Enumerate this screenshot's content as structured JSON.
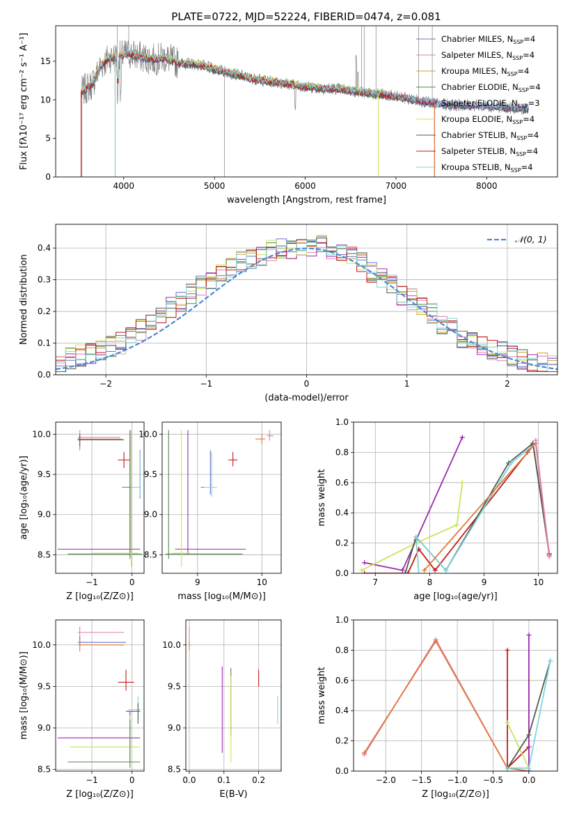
{
  "figure": {
    "title": "PLATE=0722, MJD=52224, FIBERID=0474, z=0.081"
  },
  "colors": {
    "chabrier_miles": "#6a72c8",
    "salpeter_miles": "#e07db2",
    "kroupa_miles": "#c8a030",
    "chabrier_elodie": "#4f8a45",
    "salpeter_elodie": "#9a2ab0",
    "kroupa_elodie": "#c9e45a",
    "chabrier_stelib": "#505a50",
    "salpeter_stelib": "#c41818",
    "kroupa_stelib": "#7fd4dc",
    "data": "#808080",
    "gaussian": "#4a86d6",
    "orange": "#e07a3a"
  },
  "chart_data": [
    {
      "type": "line",
      "xlabel": "wavelength [Angstrom, rest frame]",
      "ylabel": "Flux [fλ10⁻¹⁷ erg cm⁻² s⁻¹ A⁻¹]",
      "xlim": [
        3250,
        8780
      ],
      "ylim": [
        0,
        19.6
      ],
      "xticks": [
        4000,
        5000,
        6000,
        7000,
        8000
      ],
      "yticks": [
        0,
        5,
        10,
        15
      ],
      "grid": false,
      "legend_position": "top-right",
      "series": [
        {
          "name": "Chabrier MILES, N",
          "suffix": "=4"
        },
        {
          "name": "Salpeter MILES, N",
          "suffix": "=4"
        },
        {
          "name": "Kroupa MILES, N",
          "suffix": "=4"
        },
        {
          "name": "Chabrier ELODIE, N",
          "suffix": "=4"
        },
        {
          "name": "Salpeter ELODIE, N",
          "suffix": "=3"
        },
        {
          "name": "Kroupa ELODIE, N",
          "suffix": "=4"
        },
        {
          "name": "Chabrier STELIB, N",
          "suffix": "=4"
        },
        {
          "name": "Salpeter STELIB, N",
          "suffix": "=4"
        },
        {
          "name": "Kroupa STELIB, N",
          "suffix": "=4"
        }
      ],
      "continuum": {
        "x": [
          3530,
          3650,
          3750,
          3850,
          3950,
          4050,
          4150,
          4250,
          4350,
          4450,
          4600,
          4800,
          5000,
          5200,
          5400,
          5600,
          5800,
          6000,
          6200,
          6400,
          6600,
          6800,
          7000,
          7200,
          7400,
          7600,
          7800,
          8000,
          8200,
          8450
        ],
        "y": [
          11.0,
          12.0,
          14.5,
          15.5,
          15.6,
          16.0,
          15.7,
          15.4,
          15.2,
          15.5,
          14.8,
          14.6,
          14.0,
          13.4,
          12.8,
          12.4,
          12.1,
          11.7,
          11.5,
          11.4,
          11.0,
          10.8,
          10.4,
          10.0,
          9.6,
          9.3,
          9.3,
          9.2,
          9.0,
          8.8
        ]
      }
    },
    {
      "type": "line",
      "xlabel": "(data-model)/error",
      "ylabel": "Normed distribution",
      "xlim": [
        -2.5,
        2.5
      ],
      "ylim": [
        0,
        0.475
      ],
      "xticks": [
        -2,
        -1,
        0,
        1,
        2
      ],
      "yticks": [
        0.0,
        0.1,
        0.2,
        0.3,
        0.4
      ],
      "grid": true,
      "legend_label": "𝒩(0, 1)",
      "legend_position": "top-right",
      "bin_width": 0.1,
      "hist_base": [
        0.035,
        0.05,
        0.06,
        0.07,
        0.08,
        0.09,
        0.1,
        0.12,
        0.14,
        0.16,
        0.18,
        0.21,
        0.23,
        0.26,
        0.28,
        0.3,
        0.32,
        0.34,
        0.36,
        0.37,
        0.38,
        0.39,
        0.4,
        0.4,
        0.41,
        0.41,
        0.41,
        0.4,
        0.39,
        0.37,
        0.35,
        0.32,
        0.31,
        0.28,
        0.25,
        0.24,
        0.21,
        0.19,
        0.16,
        0.15,
        0.12,
        0.1,
        0.09,
        0.08,
        0.07,
        0.06,
        0.05,
        0.04,
        0.035,
        0.03
      ]
    },
    {
      "type": "scatter",
      "name": "age-vs-Z",
      "xlabel": "Z [log₁₀(Z/Z⊙)]",
      "ylabel": "age  [log₁₀(age/yr)]",
      "xlim": [
        -1.9,
        0.3
      ],
      "ylim": [
        8.27,
        10.15
      ],
      "xticks": [
        -1,
        0
      ],
      "yticks": [
        8.5,
        9.0,
        9.5,
        10.0
      ],
      "points": [
        {
          "c": "salpeter_miles",
          "x": -1.3,
          "y": 9.96,
          "xl": -1.35,
          "xh": -0.3,
          "yl": 9.9,
          "yh": 10.05
        },
        {
          "c": "orange",
          "x": -1.3,
          "y": 9.94,
          "xl": -1.35,
          "xh": -0.25,
          "yl": 9.8,
          "yh": 10.0
        },
        {
          "c": "chabrier_stelib",
          "x": -1.3,
          "y": 9.93,
          "xl": -1.35,
          "xh": -0.2,
          "yl": 9.85,
          "yh": 10.0
        },
        {
          "c": "salpeter_stelib",
          "x": -0.2,
          "y": 9.68,
          "xl": -0.35,
          "xh": -0.05,
          "yl": 9.58,
          "yh": 9.78
        },
        {
          "c": "chabrier_miles",
          "x": 0.2,
          "y": 9.34,
          "xl": -0.25,
          "xh": 0.22,
          "yl": 9.2,
          "yh": 9.8
        },
        {
          "c": "kroupa_stelib",
          "x": 0.2,
          "y": 9.34,
          "xl": 0.0,
          "xh": 0.22,
          "yl": 9.22,
          "yh": 9.78
        },
        {
          "c": "salpeter_elodie",
          "x": -0.05,
          "y": 8.57,
          "xl": -1.85,
          "xh": 0.2,
          "yl": 8.5,
          "yh": 10.05
        },
        {
          "c": "chabrier_elodie",
          "x": -0.05,
          "y": 8.51,
          "xl": -1.6,
          "xh": 0.25,
          "yl": 8.45,
          "yh": 10.0
        },
        {
          "c": "kroupa_elodie",
          "x": -0.02,
          "y": 8.52,
          "xl": -1.0,
          "xh": 0.15,
          "yl": 8.35,
          "yh": 10.05
        }
      ]
    },
    {
      "type": "scatter",
      "name": "age-vs-mass",
      "xlabel": "mass [log₁₀(M/M⊙)]",
      "xlim": [
        8.45,
        10.3
      ],
      "ylim": [
        8.27,
        10.15
      ],
      "xticks": [
        9,
        10
      ],
      "yticks": [
        8.5,
        9.0,
        9.5,
        10.0
      ],
      "points": [
        {
          "c": "salpeter_miles",
          "x": 10.12,
          "y": 9.98,
          "xl": 10.08,
          "xh": 10.18,
          "yl": 9.92,
          "yh": 10.05
        },
        {
          "c": "orange",
          "x": 10.0,
          "y": 9.94,
          "xl": 9.9,
          "xh": 10.05,
          "yl": 9.88,
          "yh": 10.0
        },
        {
          "c": "salpeter_stelib",
          "x": 9.55,
          "y": 9.68,
          "xl": 9.48,
          "xh": 9.62,
          "yl": 9.6,
          "yh": 9.78
        },
        {
          "c": "chabrier_miles",
          "x": 9.2,
          "y": 9.34,
          "xl": 9.05,
          "xh": 9.3,
          "yl": 9.25,
          "yh": 9.8
        },
        {
          "c": "kroupa_stelib",
          "x": 9.22,
          "y": 9.34,
          "xl": 9.1,
          "xh": 9.3,
          "yl": 9.22,
          "yh": 9.78
        },
        {
          "c": "salpeter_elodie",
          "x": 8.85,
          "y": 8.57,
          "xl": 8.65,
          "xh": 9.75,
          "yl": 8.5,
          "yh": 10.05
        },
        {
          "c": "chabrier_elodie",
          "x": 8.55,
          "y": 8.51,
          "xl": 8.5,
          "xh": 9.7,
          "yl": 8.45,
          "yh": 10.05
        },
        {
          "c": "kroupa_elodie",
          "x": 8.75,
          "y": 8.52,
          "xl": 8.6,
          "xh": 8.9,
          "yl": 8.35,
          "yh": 10.05
        }
      ]
    },
    {
      "type": "line",
      "name": "weight-vs-age",
      "xlabel": "age  [log₁₀(age/yr)]",
      "ylabel": "mass weight",
      "xlim": [
        6.6,
        10.35
      ],
      "ylim": [
        0,
        1.0
      ],
      "xticks": [
        7,
        8,
        9,
        10
      ],
      "yticks": [
        0.0,
        0.2,
        0.4,
        0.6,
        0.8,
        1.0
      ],
      "grid": true,
      "series": [
        {
          "c": "salpeter_elodie",
          "x": [
            6.8,
            7.5,
            7.75,
            8.6
          ],
          "y": [
            0.07,
            0.02,
            0.22,
            0.9
          ]
        },
        {
          "c": "kroupa_elodie",
          "x": [
            6.75,
            7.75,
            8.5,
            8.6
          ],
          "y": [
            0.02,
            0.2,
            0.32,
            0.6
          ]
        },
        {
          "c": "salpeter_stelib",
          "x": [
            6.8,
            7.6,
            7.8,
            8.1,
            9.8,
            9.9,
            10.2
          ],
          "y": [
            0.0,
            0.0,
            0.16,
            0.02,
            0.8,
            0.86,
            0.13
          ]
        },
        {
          "c": "chabrier_stelib",
          "x": [
            7.55,
            7.75,
            8.3,
            9.45,
            9.9,
            10.2
          ],
          "y": [
            0.0,
            0.24,
            0.02,
            0.73,
            0.86,
            0.12
          ]
        },
        {
          "c": "kroupa_stelib",
          "x": [
            7.8,
            7.75,
            8.3,
            9.5,
            9.95,
            10.2
          ],
          "y": [
            0.0,
            0.24,
            0.02,
            0.73,
            0.86,
            0.12
          ]
        },
        {
          "c": "orange",
          "x": [
            7.9,
            9.95,
            10.2
          ],
          "y": [
            0.02,
            0.86,
            0.12
          ]
        },
        {
          "c": "salpeter_miles",
          "x": [
            9.95,
            10.2
          ],
          "y": [
            0.88,
            0.11
          ]
        }
      ]
    },
    {
      "type": "scatter",
      "name": "mass-vs-Z",
      "xlabel": "Z [log₁₀(Z/Z⊙)]",
      "ylabel": "mass [log₁₀(M/M⊙)]",
      "xlim": [
        -1.9,
        0.3
      ],
      "ylim": [
        8.48,
        10.3
      ],
      "xticks": [
        -1,
        0
      ],
      "yticks": [
        8.5,
        9.0,
        9.5,
        10.0
      ],
      "points": [
        {
          "c": "salpeter_miles",
          "x": -1.3,
          "y": 10.15,
          "xl": -1.35,
          "xh": -0.2,
          "yl": 10.05,
          "yh": 10.22
        },
        {
          "c": "chabrier_miles",
          "x": -1.3,
          "y": 10.03,
          "xl": -1.35,
          "xh": -0.15,
          "yl": 10.0,
          "yh": 10.1
        },
        {
          "c": "orange",
          "x": -1.3,
          "y": 10.0,
          "xl": -1.35,
          "xh": -0.2,
          "yl": 9.92,
          "yh": 10.05
        },
        {
          "c": "salpeter_stelib",
          "x": -0.15,
          "y": 9.55,
          "xl": -0.35,
          "xh": 0.05,
          "yl": 9.45,
          "yh": 9.7
        },
        {
          "c": "kroupa_stelib",
          "x": 0.15,
          "y": 9.22,
          "xl": -0.1,
          "xh": 0.22,
          "yl": 9.1,
          "yh": 9.38
        },
        {
          "c": "chabrier_stelib",
          "x": 0.15,
          "y": 9.2,
          "xl": -0.15,
          "xh": 0.2,
          "yl": 9.05,
          "yh": 9.3
        },
        {
          "c": "salpeter_elodie",
          "x": -0.05,
          "y": 8.88,
          "xl": -1.85,
          "xh": 0.2,
          "yl": 8.6,
          "yh": 9.2
        },
        {
          "c": "kroupa_elodie",
          "x": -0.05,
          "y": 8.77,
          "xl": -1.55,
          "xh": 0.2,
          "yl": 8.58,
          "yh": 9.15
        },
        {
          "c": "chabrier_elodie",
          "x": -0.05,
          "y": 8.59,
          "xl": -1.6,
          "xh": 0.2,
          "yl": 8.52,
          "yh": 9.1
        }
      ]
    },
    {
      "type": "scatter",
      "name": "mass-vs-ebv",
      "xlabel": "E(B-V)",
      "xlim": [
        -0.01,
        0.265
      ],
      "ylim": [
        8.48,
        10.3
      ],
      "xticks": [
        0.0,
        0.1,
        0.2
      ],
      "yticks": [
        8.5,
        9.0,
        9.5,
        10.0
      ],
      "points": [
        {
          "c": "salpeter_miles",
          "x": 0.0,
          "y": 10.1,
          "yl": 9.98,
          "yh": 10.22
        },
        {
          "c": "orange",
          "x": 0.0,
          "y": 10.0,
          "yl": 9.93,
          "yh": 10.05
        },
        {
          "c": "salpeter_stelib",
          "x": 0.2,
          "y": 9.6,
          "yl": 9.5,
          "yh": 9.7
        },
        {
          "c": "salpeter_elodie",
          "x": 0.095,
          "y": 9.2,
          "yl": 8.7,
          "yh": 9.74
        },
        {
          "c": "chabrier_elodie",
          "x": 0.12,
          "y": 9.3,
          "yl": 8.9,
          "yh": 9.72
        },
        {
          "c": "kroupa_elodie",
          "x": 0.12,
          "y": 9.1,
          "yl": 8.58,
          "yh": 9.63
        },
        {
          "c": "kroupa_stelib",
          "x": 0.255,
          "y": 9.2,
          "yl": 9.05,
          "yh": 9.38
        }
      ]
    },
    {
      "type": "line",
      "name": "weight-vs-Z",
      "xlabel": "Z [log₁₀(Z/Z⊙)]",
      "ylabel": "mass weight",
      "xlim": [
        -2.45,
        0.4
      ],
      "ylim": [
        0,
        1.0
      ],
      "xticks": [
        -2.0,
        -1.5,
        -1.0,
        -0.5,
        0.0
      ],
      "yticks": [
        0.0,
        0.2,
        0.4,
        0.6,
        0.8,
        1.0
      ],
      "grid": true,
      "series": [
        {
          "c": "salpeter_miles",
          "x": [
            -2.3,
            -1.3,
            -0.3,
            0.0
          ],
          "y": [
            0.11,
            0.87,
            0.02,
            0.0
          ]
        },
        {
          "c": "orange",
          "x": [
            -2.3,
            -1.3,
            -0.3,
            0.0
          ],
          "y": [
            0.12,
            0.86,
            0.02,
            0.0
          ]
        },
        {
          "c": "salpeter_stelib",
          "x": [
            -0.3,
            -0.3,
            0.0,
            0.0
          ],
          "y": [
            0.8,
            0.02,
            0.16,
            0.0
          ]
        },
        {
          "c": "kroupa_elodie",
          "x": [
            -0.3,
            0.0,
            0.0
          ],
          "y": [
            0.32,
            0.02,
            0.6
          ]
        },
        {
          "c": "salpeter_elodie",
          "x": [
            0.0,
            0.0
          ],
          "y": [
            0.0,
            0.9
          ]
        },
        {
          "c": "chabrier_stelib",
          "x": [
            -0.3,
            0.0,
            0.3
          ],
          "y": [
            0.02,
            0.24,
            0.73
          ]
        },
        {
          "c": "kroupa_stelib",
          "x": [
            -0.3,
            0.0,
            0.3
          ],
          "y": [
            0.02,
            0.02,
            0.73
          ]
        }
      ]
    }
  ]
}
